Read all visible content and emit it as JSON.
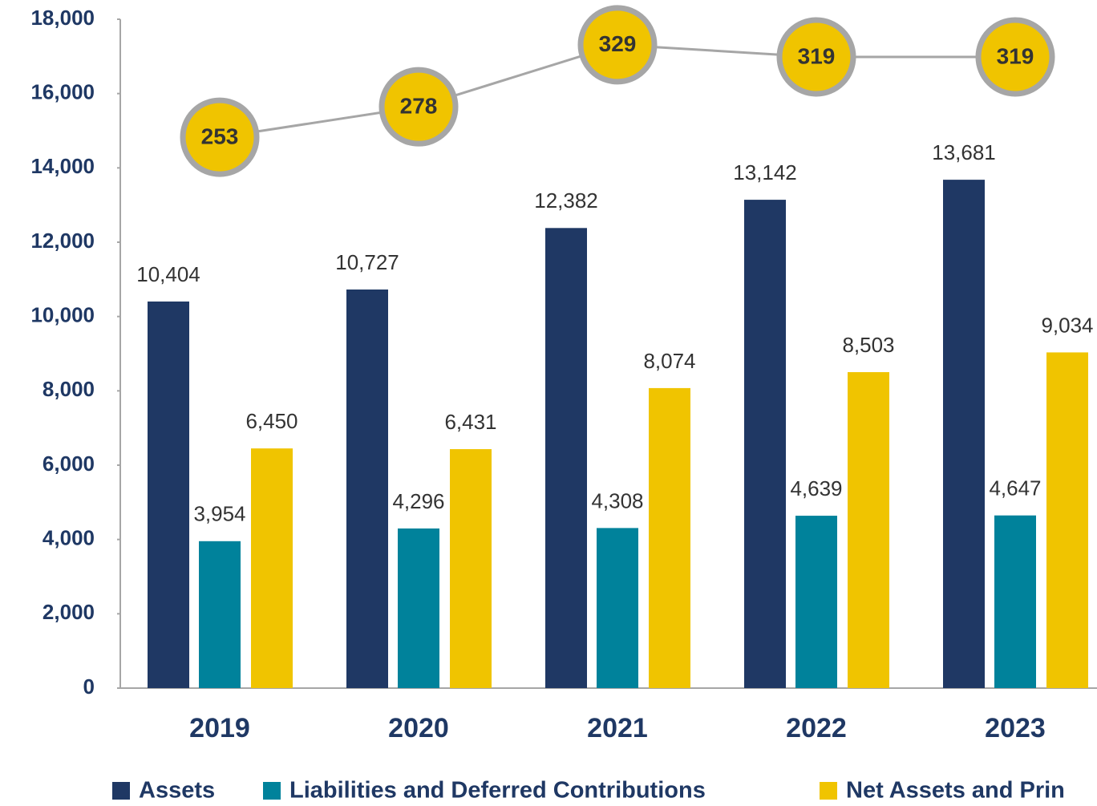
{
  "chart_data": {
    "type": "bar",
    "categories": [
      "2019",
      "2020",
      "2021",
      "2022",
      "2023"
    ],
    "series": [
      {
        "name": "Assets",
        "color": "#1f3864",
        "values": [
          10404,
          10727,
          12382,
          13142,
          13681
        ],
        "value_labels": [
          "10,404",
          "10,727",
          "12,382",
          "13,142",
          "13,681"
        ]
      },
      {
        "name": "Liabilities and Deferred Contributions",
        "color": "#00829b",
        "values": [
          3954,
          4296,
          4308,
          4639,
          4647
        ],
        "value_labels": [
          "3,954",
          "4,296",
          "4,308",
          "4,639",
          "4,647"
        ]
      },
      {
        "name": "Net Assets and Prin",
        "color": "#f0c400",
        "values": [
          6450,
          6431,
          8074,
          8503,
          9034
        ],
        "value_labels": [
          "6,450",
          "6,431",
          "8,074",
          "8,503",
          "9,034"
        ]
      },
      {
        "type": "line",
        "axis": "y2",
        "color": "#a6a6a6",
        "marker_color": "#f0c400",
        "values": [
          253,
          278,
          329,
          319,
          319
        ]
      }
    ],
    "ylim": [
      0,
      18000
    ],
    "yticks": [
      {
        "value": 0,
        "label": "0"
      },
      {
        "value": 2000,
        "label": "2,000"
      },
      {
        "value": 4000,
        "label": "4,000"
      },
      {
        "value": 6000,
        "label": "6,000"
      },
      {
        "value": 8000,
        "label": "8,000"
      },
      {
        "value": 10000,
        "label": "10,000"
      },
      {
        "value": 12000,
        "label": "12,000"
      },
      {
        "value": 14000,
        "label": "14,000"
      },
      {
        "value": 16000,
        "label": "16,000"
      },
      {
        "value": 18000,
        "label": "18,000"
      }
    ],
    "y2lim": [
      -200,
      350
    ],
    "grid": false,
    "legend": "bottom"
  }
}
